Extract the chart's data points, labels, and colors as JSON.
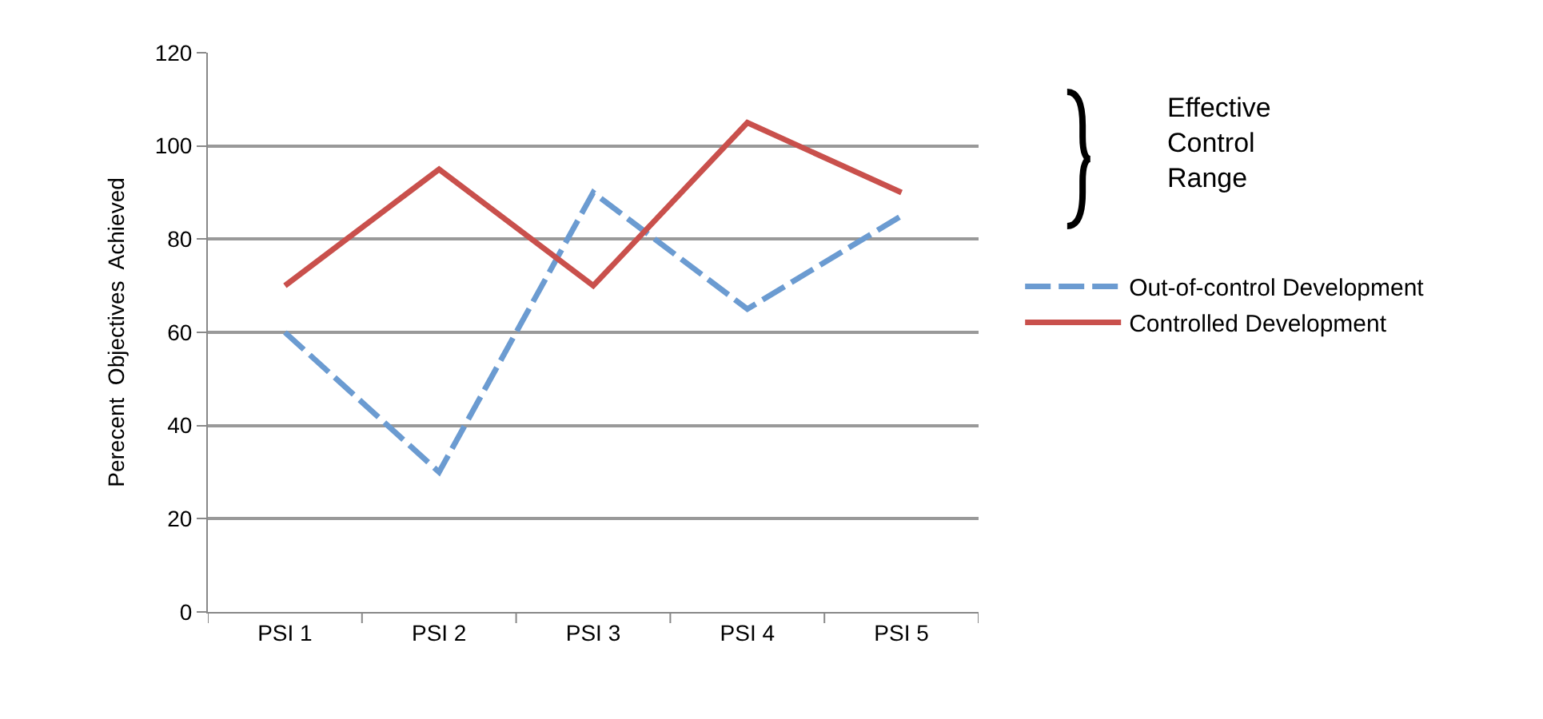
{
  "chart_data": {
    "type": "line",
    "ylabel": "Perecent  Objectives  Achieved",
    "categories": [
      "PSI 1",
      "PSI 2",
      "PSI 3",
      "PSI 4",
      "PSI 5"
    ],
    "series": [
      {
        "name": "Out-of-control Development",
        "color": "#6b9bd1",
        "line_style": "dashed",
        "values": [
          60,
          30,
          90,
          65,
          85
        ]
      },
      {
        "name": "Controlled Development",
        "color": "#c9504c",
        "line_style": "solid",
        "values": [
          70,
          95,
          70,
          105,
          90
        ]
      }
    ],
    "ylim": [
      0,
      120
    ],
    "yticks": [
      0,
      20,
      40,
      60,
      80,
      100,
      120
    ],
    "grid": "y",
    "legend": "right",
    "marker": "none",
    "annotations": [
      "Effective\nControl\nRange"
    ]
  }
}
